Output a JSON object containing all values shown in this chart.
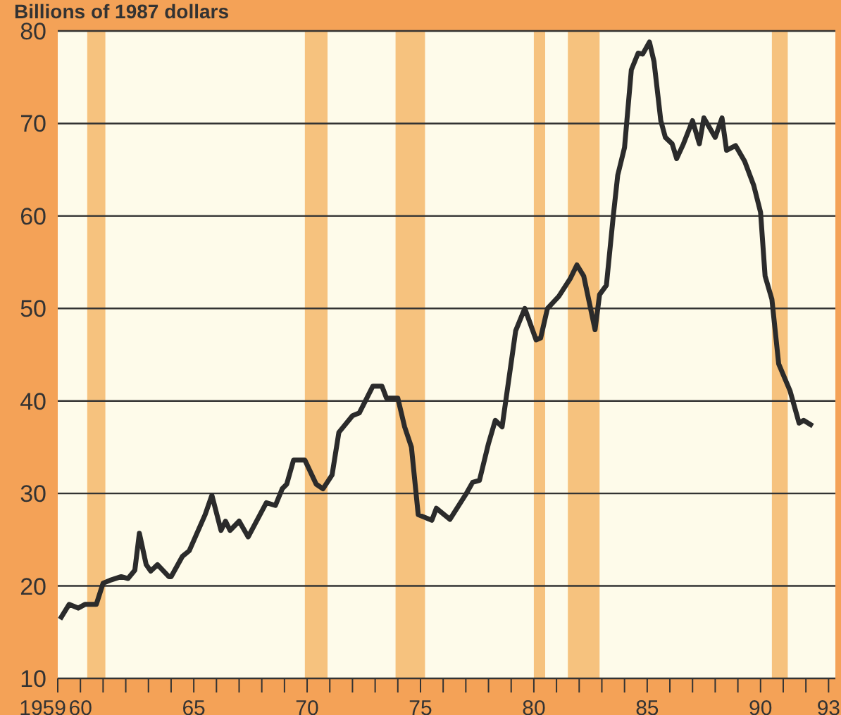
{
  "chart_data": {
    "type": "line",
    "ylabel": "Billions of 1987 dollars",
    "x": [
      1959.1,
      1959.5,
      1959.9,
      1960.2,
      1960.7,
      1961.0,
      1961.3,
      1961.8,
      1962.1,
      1962.4,
      1962.6,
      1962.9,
      1963.1,
      1963.4,
      1963.9,
      1964.0,
      1964.5,
      1964.8,
      1965.5,
      1965.8,
      1966.2,
      1966.4,
      1966.6,
      1967.0,
      1967.4,
      1968.2,
      1968.6,
      1968.9,
      1969.1,
      1969.4,
      1969.9,
      1970.4,
      1970.7,
      1971.1,
      1971.4,
      1972.0,
      1972.3,
      1972.9,
      1973.3,
      1973.5,
      1974.0,
      1974.3,
      1974.6,
      1974.9,
      1975.5,
      1975.7,
      1976.3,
      1977.0,
      1977.3,
      1977.6,
      1978.0,
      1978.3,
      1978.6,
      1979.2,
      1979.6,
      1980.1,
      1980.3,
      1980.6,
      1981.1,
      1981.6,
      1981.9,
      1982.2,
      1982.7,
      1982.9,
      1983.2,
      1983.5,
      1983.7,
      1984.0,
      1984.3,
      1984.6,
      1984.8,
      1985.1,
      1985.3,
      1985.6,
      1985.8,
      1986.1,
      1986.3,
      1986.6,
      1987.0,
      1987.3,
      1987.5,
      1988.0,
      1988.3,
      1988.5,
      1988.9,
      1989.3,
      1989.7,
      1990.0,
      1990.2,
      1990.5,
      1990.8,
      1991.3,
      1991.7,
      1991.9,
      1992.3
    ],
    "series": [
      {
        "color": "#2b2b2b",
        "values": [
          16.4,
          18,
          17.6,
          18,
          18,
          20.3,
          20.6,
          21,
          20.8,
          21.7,
          25.7,
          22.3,
          21.6,
          22.3,
          21,
          21,
          23.2,
          23.8,
          27.7,
          29.8,
          26,
          27,
          26,
          27,
          25.3,
          29,
          28.7,
          30.5,
          31,
          33.6,
          33.6,
          31,
          30.5,
          32,
          36.6,
          38.4,
          38.7,
          41.6,
          41.6,
          40.3,
          40.3,
          37.2,
          35,
          27.7,
          27.1,
          28.4,
          27.2,
          29.9,
          31.2,
          31.4,
          35.4,
          37.9,
          37.2,
          47.6,
          50,
          46.6,
          46.8,
          50,
          51.3,
          53.2,
          54.7,
          53.5,
          47.7,
          51.5,
          52.5,
          59.9,
          64.4,
          67.4,
          75.8,
          77.6,
          77.5,
          78.8,
          76.7,
          70.3,
          68.5,
          67.8,
          66.2,
          67.8,
          70.3,
          67.8,
          70.6,
          68.5,
          70.6,
          67.1,
          67.6,
          65.9,
          63.3,
          60.4,
          53.5,
          51,
          44,
          41.1,
          37.6,
          37.9,
          37.3
        ]
      }
    ],
    "xlim": [
      1959,
      1993.3
    ],
    "xticks": [
      {
        "value": 1959,
        "label": "1959"
      },
      {
        "value": 1960,
        "label": "60"
      },
      {
        "value": 1961,
        "label": null
      },
      {
        "value": 1962,
        "label": null
      },
      {
        "value": 1963,
        "label": null
      },
      {
        "value": 1964,
        "label": null
      },
      {
        "value": 1965,
        "label": "65"
      },
      {
        "value": 1966,
        "label": null
      },
      {
        "value": 1967,
        "label": null
      },
      {
        "value": 1968,
        "label": null
      },
      {
        "value": 1969,
        "label": null
      },
      {
        "value": 1970,
        "label": "70"
      },
      {
        "value": 1971,
        "label": null
      },
      {
        "value": 1972,
        "label": null
      },
      {
        "value": 1973,
        "label": null
      },
      {
        "value": 1974,
        "label": null
      },
      {
        "value": 1975,
        "label": "75"
      },
      {
        "value": 1976,
        "label": null
      },
      {
        "value": 1977,
        "label": null
      },
      {
        "value": 1978,
        "label": null
      },
      {
        "value": 1979,
        "label": null
      },
      {
        "value": 1980,
        "label": "80"
      },
      {
        "value": 1981,
        "label": null
      },
      {
        "value": 1982,
        "label": null
      },
      {
        "value": 1983,
        "label": null
      },
      {
        "value": 1984,
        "label": null
      },
      {
        "value": 1985,
        "label": "85"
      },
      {
        "value": 1986,
        "label": null
      },
      {
        "value": 1987,
        "label": null
      },
      {
        "value": 1988,
        "label": null
      },
      {
        "value": 1989,
        "label": null
      },
      {
        "value": 1990,
        "label": "90"
      },
      {
        "value": 1991,
        "label": null
      },
      {
        "value": 1992,
        "label": null
      },
      {
        "value": 1993,
        "label": "93"
      }
    ],
    "ylim": [
      10,
      80
    ],
    "yticks": [
      10,
      20,
      30,
      40,
      50,
      60,
      70,
      80
    ],
    "grid": "y",
    "marker": "none",
    "line_style": "solid",
    "bands": [
      {
        "axis": "x",
        "from": 1960.3,
        "to": 1961.1,
        "color": "#f6c27e"
      },
      {
        "axis": "x",
        "from": 1969.9,
        "to": 1970.9,
        "color": "#f6c27e"
      },
      {
        "axis": "x",
        "from": 1973.9,
        "to": 1975.2,
        "color": "#f6c27e"
      },
      {
        "axis": "x",
        "from": 1980.0,
        "to": 1980.5,
        "color": "#f6c27e"
      },
      {
        "axis": "x",
        "from": 1981.5,
        "to": 1982.9,
        "color": "#f6c27e"
      },
      {
        "axis": "x",
        "from": 1990.5,
        "to": 1991.2,
        "color": "#f6c27e"
      }
    ]
  }
}
